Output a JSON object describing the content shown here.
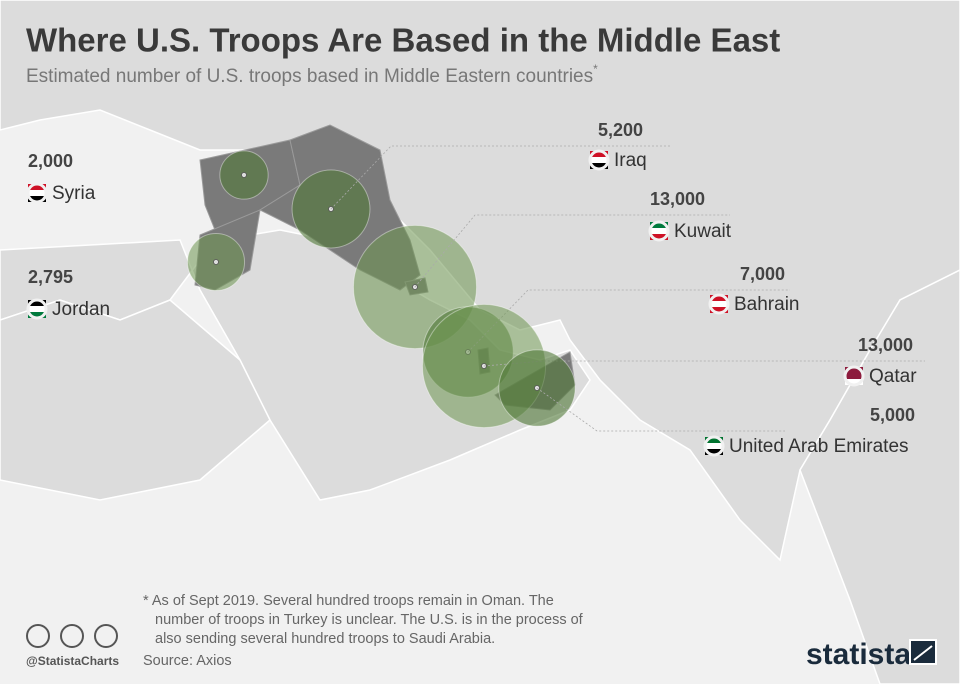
{
  "header": {
    "title": "Where U.S. Troops Are Based in the Middle East",
    "subtitle": "Estimated number of U.S. troops based in Middle Eastern countries",
    "subtitle_mark": "*"
  },
  "countries": [
    {
      "name": "Syria",
      "troops": {
        "value": 2000,
        "label": "2,000"
      }
    },
    {
      "name": "Jordan",
      "troops": {
        "value": 2795,
        "label": "2,795"
      }
    },
    {
      "name": "Iraq",
      "troops": {
        "value": 5200,
        "label": "5,200"
      }
    },
    {
      "name": "Kuwait",
      "troops": {
        "value": 13000,
        "label": "13,000"
      }
    },
    {
      "name": "Bahrain",
      "troops": {
        "value": 7000,
        "label": "7,000"
      }
    },
    {
      "name": "Qatar",
      "troops": {
        "value": 13000,
        "label": "13,000"
      }
    },
    {
      "name": "United Arab Emirates",
      "troops": {
        "value": 5000,
        "label": "5,000"
      }
    }
  ],
  "footnote": [
    "* As of Sept 2019. Several hundred troops remain in Oman. The",
    "number of troops in Turkey is unclear. The U.S. is in the process of",
    "also sending several hundred troops to Saudi Arabia."
  ],
  "source": "Source: Axios",
  "handle": "@StatistaCharts",
  "brand": "statista"
}
